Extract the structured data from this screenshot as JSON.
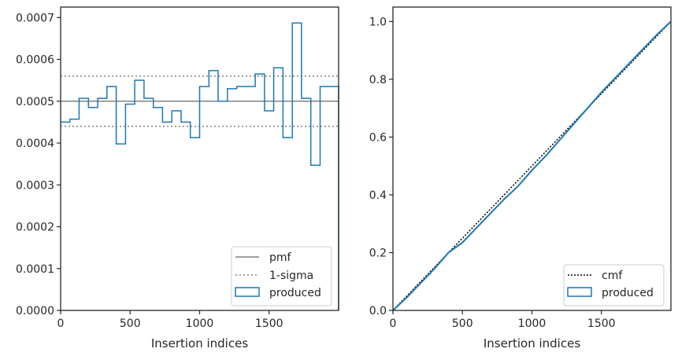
{
  "chart_data": [
    {
      "type": "histogram-step",
      "xlabel": "Insertion indices",
      "ylabel": "",
      "xlim": [
        0,
        2000
      ],
      "ylim": [
        0,
        0.000725
      ],
      "x_ticks": [
        0,
        500,
        1000,
        1500
      ],
      "x_tick_labels": [
        "0",
        "500",
        "1000",
        "1500"
      ],
      "y_ticks": [
        0,
        0.0001,
        0.0002,
        0.0003,
        0.0004,
        0.0005,
        0.0006,
        0.0007
      ],
      "y_tick_labels": [
        "0.0000",
        "0.0001",
        "0.0002",
        "0.0003",
        "0.0004",
        "0.0005",
        "0.0006",
        "0.0007"
      ],
      "reference_lines": {
        "pmf": 0.0005,
        "sigma_upper": 0.00056,
        "sigma_lower": 0.00044
      },
      "bin_edges": [
        0,
        67,
        133,
        200,
        267,
        333,
        400,
        467,
        533,
        600,
        667,
        733,
        800,
        867,
        933,
        1000,
        1067,
        1133,
        1200,
        1267,
        1333,
        1400,
        1467,
        1533,
        1600,
        1667,
        1733,
        1800,
        1867,
        1933,
        2000
      ],
      "values": [
        0.00045,
        0.000457,
        0.000507,
        0.000485,
        0.000507,
        0.000535,
        0.000398,
        0.000493,
        0.00055,
        0.000507,
        0.000485,
        0.00045,
        0.000477,
        0.00045,
        0.000413,
        0.000535,
        0.000573,
        0.0005,
        0.00053,
        0.000535,
        0.000535,
        0.000565,
        0.000477,
        0.00058,
        0.000413,
        0.000687,
        0.000507,
        0.000347,
        0.000535,
        0.000535
      ],
      "legend": {
        "position": "lower right",
        "entries": [
          "pmf",
          "1-sigma",
          "produced"
        ]
      },
      "colors": {
        "pmf": "#808080",
        "sigma": "#808080",
        "produced": "#1f77b4"
      }
    },
    {
      "type": "line",
      "xlabel": "Insertion indices",
      "ylabel": "",
      "xlim": [
        0,
        2000
      ],
      "ylim": [
        0,
        1.05
      ],
      "x_ticks": [
        0,
        500,
        1000,
        1500
      ],
      "x_tick_labels": [
        "0",
        "500",
        "1000",
        "1500"
      ],
      "y_ticks": [
        0,
        0.2,
        0.4,
        0.6,
        0.8,
        1.0
      ],
      "y_tick_labels": [
        "0.0",
        "0.2",
        "0.4",
        "0.6",
        "0.8",
        "1.0"
      ],
      "series": [
        {
          "name": "cmf",
          "x": [
            0,
            2000
          ],
          "y": [
            0,
            1.0
          ]
        },
        {
          "name": "produced",
          "x": [
            0,
            100,
            200,
            300,
            400,
            500,
            600,
            700,
            800,
            900,
            1000,
            1100,
            1200,
            1300,
            1400,
            1500,
            1600,
            1700,
            1800,
            1900,
            2000
          ],
          "y": [
            0,
            0.045,
            0.095,
            0.145,
            0.2,
            0.235,
            0.285,
            0.335,
            0.385,
            0.43,
            0.485,
            0.535,
            0.59,
            0.645,
            0.7,
            0.755,
            0.805,
            0.855,
            0.905,
            0.955,
            1.0
          ]
        }
      ],
      "legend": {
        "position": "lower right",
        "entries": [
          "cmf",
          "produced"
        ]
      },
      "colors": {
        "cmf": "#000000",
        "produced": "#1f77b4"
      }
    }
  ]
}
